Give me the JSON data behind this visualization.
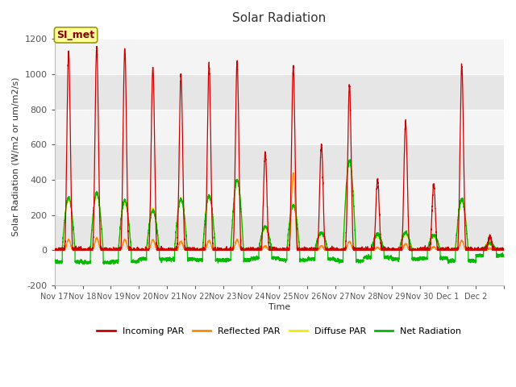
{
  "title": "Solar Radiation",
  "ylabel": "Solar Radiation (W/m2 or um/m2/s)",
  "xlabel": "Time",
  "ylim": [
    -200,
    1260
  ],
  "yticks": [
    -200,
    0,
    200,
    400,
    600,
    800,
    1000,
    1200
  ],
  "x_labels": [
    "Nov 17",
    "Nov 18",
    "Nov 19",
    "Nov 20",
    "Nov 21",
    "Nov 22",
    "Nov 23",
    "Nov 24",
    "Nov 25",
    "Nov 26",
    "Nov 27",
    "Nov 28",
    "Nov 29",
    "Nov 30",
    "Dec 1",
    "Dec 2"
  ],
  "station_label": "SI_met",
  "colors": {
    "incoming": "#CC0000",
    "reflected": "#FF8800",
    "diffuse": "#EEEE00",
    "net": "#00BB00",
    "band_light": "#F4F4F4",
    "band_dark": "#E6E6E6"
  },
  "legend": [
    "Incoming PAR",
    "Reflected PAR",
    "Diffuse PAR",
    "Net Radiation"
  ]
}
